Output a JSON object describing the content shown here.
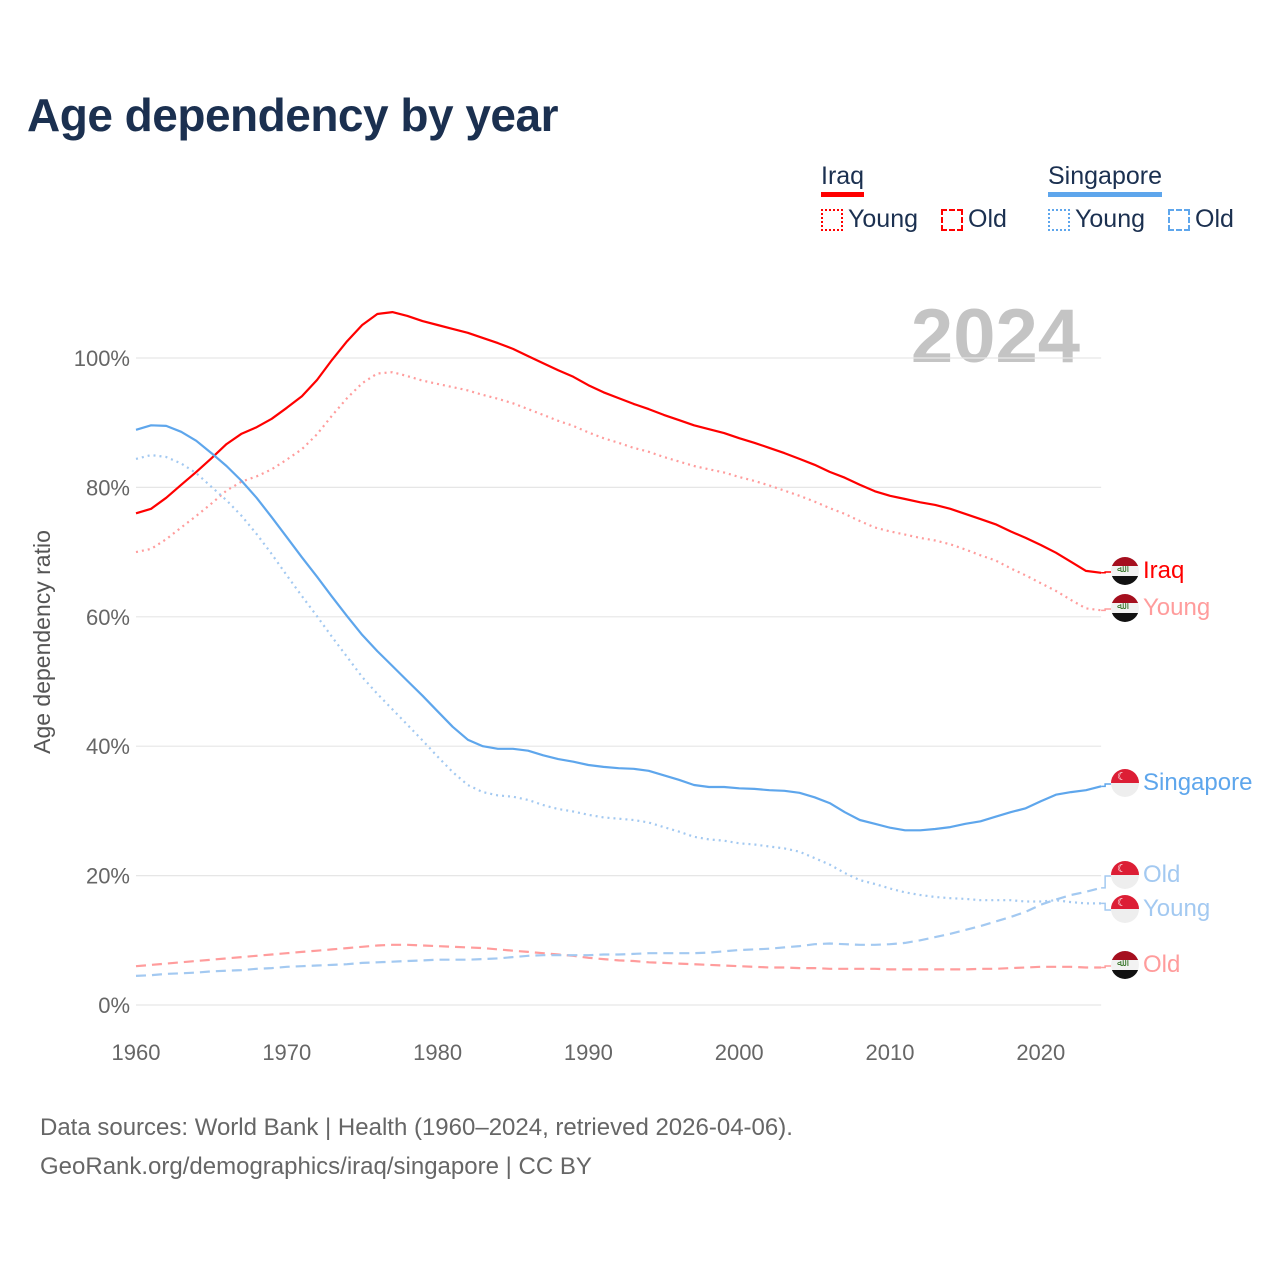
{
  "title": "Age dependency by year",
  "year_badge": "2024",
  "legend": {
    "countries": [
      {
        "name": "Iraq",
        "color": "#ff0000",
        "light_color": "#ff9c9c",
        "items": [
          "Young",
          "Old"
        ]
      },
      {
        "name": "Singapore",
        "color": "#5ea6ec",
        "light_color": "#a3c9f1",
        "items": [
          "Young",
          "Old"
        ]
      }
    ]
  },
  "end_labels": {
    "iraq_total": "Iraq",
    "iraq_young": "Young",
    "singapore_total": "Singapore",
    "singapore_old": "Old",
    "singapore_young": "Young",
    "iraq_old": "Old"
  },
  "source": {
    "line1": "Data sources: World Bank | Health (1960–2024, retrieved 2026-04-06).",
    "line2": "GeoRank.org/demographics/iraq/singapore | CC BY"
  },
  "chart_data": {
    "type": "line",
    "title": "Age dependency by year",
    "xlabel": "",
    "ylabel": "Age dependency ratio",
    "xlim": [
      1960,
      2024
    ],
    "ylim": [
      0,
      110
    ],
    "xticks": [
      1960,
      1970,
      1980,
      1990,
      2000,
      2010,
      2020
    ],
    "yticks": [
      0,
      20,
      40,
      60,
      80,
      100
    ],
    "ytick_labels": [
      "0%",
      "20%",
      "40%",
      "60%",
      "80%",
      "100%"
    ],
    "grid": "horizontal",
    "legend_position": "top-right",
    "x_start": 1960,
    "series": [
      {
        "name": "Iraq",
        "key": "iraq_total",
        "style": "solid",
        "color": "#ff0000",
        "values": [
          76.0,
          76.7,
          78.4,
          80.4,
          82.4,
          84.5,
          86.7,
          88.3,
          89.3,
          90.6,
          92.3,
          94.1,
          96.6,
          99.7,
          102.6,
          105.1,
          106.8,
          107.1,
          106.5,
          105.7,
          105.1,
          104.5,
          103.9,
          103.1,
          102.3,
          101.4,
          100.3,
          99.2,
          98.1,
          97.1,
          95.8,
          94.7,
          93.8,
          92.9,
          92.1,
          91.2,
          90.4,
          89.6,
          89.0,
          88.4,
          87.6,
          86.9,
          86.1,
          85.3,
          84.4,
          83.5,
          82.4,
          81.5,
          80.4,
          79.4,
          78.7,
          78.2,
          77.7,
          77.3,
          76.7,
          75.9,
          75.1,
          74.3,
          73.2,
          72.2,
          71.1,
          69.9,
          68.5,
          67.1,
          66.8
        ]
      },
      {
        "name": "Iraq Young",
        "key": "iraq_young",
        "style": "dotted",
        "color": "#ff9c9c",
        "values": [
          70.0,
          70.5,
          72.0,
          73.8,
          75.6,
          77.5,
          79.5,
          80.9,
          81.7,
          82.8,
          84.3,
          85.9,
          88.2,
          91.1,
          93.8,
          96.1,
          97.6,
          97.8,
          97.2,
          96.5,
          96.0,
          95.5,
          95.0,
          94.3,
          93.7,
          93.0,
          92.1,
          91.2,
          90.3,
          89.5,
          88.5,
          87.6,
          86.9,
          86.1,
          85.5,
          84.7,
          84.0,
          83.3,
          82.8,
          82.3,
          81.6,
          81.0,
          80.3,
          79.5,
          78.7,
          77.8,
          76.8,
          75.9,
          74.8,
          73.8,
          73.2,
          72.7,
          72.2,
          71.8,
          71.2,
          70.4,
          69.5,
          68.7,
          67.5,
          66.4,
          65.2,
          64.0,
          62.6,
          61.3,
          61.0
        ]
      },
      {
        "name": "Iraq Old",
        "key": "iraq_old",
        "style": "dashed",
        "color": "#ff9c9c",
        "values": [
          6.0,
          6.2,
          6.4,
          6.6,
          6.8,
          7.0,
          7.2,
          7.4,
          7.6,
          7.8,
          8.0,
          8.2,
          8.4,
          8.6,
          8.8,
          9.0,
          9.2,
          9.3,
          9.3,
          9.2,
          9.1,
          9.0,
          8.9,
          8.8,
          8.6,
          8.4,
          8.2,
          8.0,
          7.8,
          7.6,
          7.3,
          7.1,
          6.9,
          6.8,
          6.6,
          6.5,
          6.4,
          6.3,
          6.2,
          6.1,
          6.0,
          5.9,
          5.8,
          5.8,
          5.7,
          5.7,
          5.6,
          5.6,
          5.6,
          5.6,
          5.5,
          5.5,
          5.5,
          5.5,
          5.5,
          5.5,
          5.6,
          5.6,
          5.7,
          5.8,
          5.9,
          5.9,
          5.9,
          5.8,
          5.8
        ]
      },
      {
        "name": "Singapore",
        "key": "singapore_total",
        "style": "solid",
        "color": "#5ea6ec",
        "values": [
          88.9,
          89.6,
          89.5,
          88.6,
          87.2,
          85.3,
          83.3,
          81.0,
          78.4,
          75.4,
          72.3,
          69.2,
          66.2,
          63.1,
          60.1,
          57.2,
          54.7,
          52.4,
          50.1,
          47.8,
          45.4,
          43.0,
          41.0,
          40.0,
          39.6,
          39.6,
          39.3,
          38.6,
          38.0,
          37.6,
          37.1,
          36.8,
          36.6,
          36.5,
          36.2,
          35.5,
          34.8,
          34.0,
          33.7,
          33.7,
          33.5,
          33.4,
          33.2,
          33.1,
          32.8,
          32.1,
          31.2,
          29.8,
          28.6,
          28.0,
          27.4,
          27.0,
          27.0,
          27.2,
          27.5,
          28.0,
          28.4,
          29.1,
          29.8,
          30.4,
          31.5,
          32.5,
          32.9,
          33.2,
          33.8
        ]
      },
      {
        "name": "Singapore Young",
        "key": "singapore_young",
        "style": "dotted",
        "color": "#a3c9f1",
        "values": [
          84.4,
          85.0,
          84.7,
          83.7,
          82.2,
          80.1,
          78.0,
          75.6,
          72.8,
          69.7,
          66.4,
          63.2,
          60.1,
          56.9,
          53.8,
          50.7,
          48.1,
          45.7,
          43.3,
          40.9,
          38.4,
          36.0,
          34.0,
          32.9,
          32.4,
          32.2,
          31.7,
          30.9,
          30.3,
          29.9,
          29.4,
          29.0,
          28.8,
          28.6,
          28.2,
          27.5,
          26.8,
          26.0,
          25.6,
          25.4,
          25.0,
          24.8,
          24.5,
          24.2,
          23.7,
          22.7,
          21.7,
          20.4,
          19.3,
          18.7,
          18.0,
          17.4,
          17.0,
          16.7,
          16.5,
          16.4,
          16.2,
          16.2,
          16.2,
          16.0,
          16.0,
          16.2,
          15.9,
          15.7,
          15.7
        ]
      },
      {
        "name": "Singapore Old",
        "key": "singapore_old",
        "style": "dashed",
        "color": "#a3c9f1",
        "values": [
          4.5,
          4.6,
          4.8,
          4.9,
          5.0,
          5.2,
          5.3,
          5.4,
          5.6,
          5.7,
          5.9,
          6.0,
          6.1,
          6.2,
          6.3,
          6.5,
          6.6,
          6.7,
          6.8,
          6.9,
          7.0,
          7.0,
          7.0,
          7.1,
          7.2,
          7.4,
          7.6,
          7.7,
          7.7,
          7.7,
          7.7,
          7.8,
          7.8,
          7.9,
          8.0,
          8.0,
          8.0,
          8.0,
          8.1,
          8.3,
          8.5,
          8.6,
          8.7,
          8.9,
          9.1,
          9.4,
          9.5,
          9.4,
          9.3,
          9.3,
          9.4,
          9.6,
          10.0,
          10.5,
          11.0,
          11.6,
          12.2,
          12.9,
          13.6,
          14.4,
          15.5,
          16.3,
          17.0,
          17.5,
          18.1
        ]
      }
    ]
  }
}
